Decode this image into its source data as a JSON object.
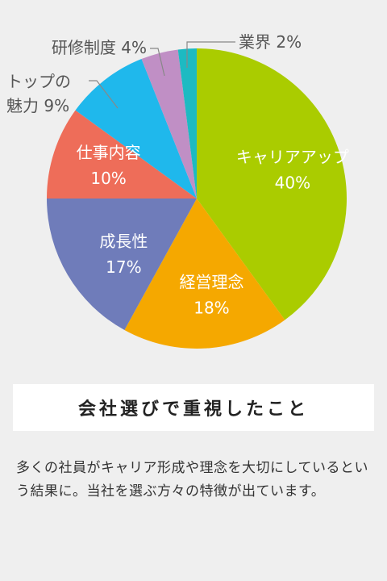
{
  "chart_data": {
    "type": "pie",
    "slices": [
      {
        "label": "キャリアアップ",
        "value": 40,
        "display": "40%",
        "color": "#aacc00",
        "text_color": "#ffffff"
      },
      {
        "label": "経営理念",
        "value": 18,
        "display": "18%",
        "color": "#f5a800",
        "text_color": "#ffffff"
      },
      {
        "label": "成長性",
        "value": 17,
        "display": "17%",
        "color": "#6f7cba",
        "text_color": "#ffffff"
      },
      {
        "label": "仕事内容",
        "value": 10,
        "display": "10%",
        "color": "#ee6d59",
        "text_color": "#ffffff"
      },
      {
        "label_lines": [
          "トップの",
          "魅力 9%"
        ],
        "label": "トップの魅力",
        "value": 9,
        "display": "9%",
        "color": "#1fb8ec",
        "text_color": "#555555"
      },
      {
        "label": "研修制度 4%",
        "value": 4,
        "display": "4%",
        "color": "#c08fc5",
        "text_color": "#555555"
      },
      {
        "label": "業界 2%",
        "value": 2,
        "display": "2%",
        "color": "#1dbac2",
        "text_color": "#555555"
      }
    ]
  },
  "caption": "会社選びで重視したこと",
  "description": "多くの社員がキャリア形成や理念を大切にしているという結果に。当社を選ぶ方々の特徴が出ています。"
}
